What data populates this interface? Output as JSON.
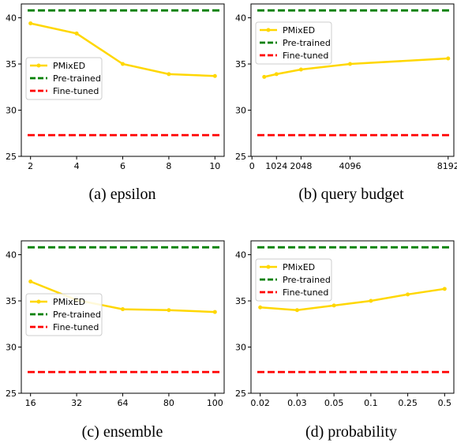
{
  "colors": {
    "pmixed": "#FFD700",
    "pretrained": "#008000",
    "finetuned": "#FF0000"
  },
  "chart_data": [
    {
      "type": "line",
      "caption": "(a) epsilon",
      "x": [
        2,
        4,
        6,
        8,
        10
      ],
      "x_tick_labels": [
        "2",
        "4",
        "6",
        "8",
        "10"
      ],
      "xlim": [
        1.6,
        10.4
      ],
      "ylim": [
        25,
        41.5
      ],
      "y_ticks": [
        25,
        30,
        35,
        40
      ],
      "series": [
        {
          "name": "PMixED",
          "values": [
            39.4,
            38.3,
            35.0,
            33.9,
            33.7
          ]
        },
        {
          "name": "Pre-trained",
          "values": [
            40.8,
            40.8,
            40.8,
            40.8,
            40.8
          ]
        },
        {
          "name": "Fine-tuned",
          "values": [
            27.3,
            27.3,
            27.3,
            27.3,
            27.3
          ]
        }
      ],
      "legend_position": "center-left"
    },
    {
      "type": "line",
      "caption": "(b) query budget",
      "x": [
        512,
        1024,
        2048,
        4096,
        8192
      ],
      "x_ticks": [
        0,
        1024,
        2048,
        4096,
        8192
      ],
      "x_tick_labels": [
        "0",
        "1024",
        "2048",
        "4096",
        "8192"
      ],
      "xlim": [
        -40,
        8430
      ],
      "ylim": [
        25,
        41.5
      ],
      "y_ticks": [
        25,
        30,
        35,
        40
      ],
      "series": [
        {
          "name": "PMixED",
          "values": [
            33.6,
            33.9,
            34.4,
            35.0,
            35.6
          ]
        },
        {
          "name": "Pre-trained",
          "values": [
            40.8,
            40.8,
            40.8,
            40.8,
            40.8
          ]
        },
        {
          "name": "Fine-tuned",
          "values": [
            27.3,
            27.3,
            27.3,
            27.3,
            27.3
          ]
        }
      ],
      "legend_position": "upper-left"
    },
    {
      "type": "line",
      "caption": "(c) ensemble",
      "x": [
        16,
        32,
        64,
        80,
        100
      ],
      "x_tick_labels": [
        "16",
        "32",
        "64",
        "80",
        "100"
      ],
      "xlim": [
        -0.2,
        4.2
      ],
      "ylim": [
        25,
        41.5
      ],
      "y_ticks": [
        25,
        30,
        35,
        40
      ],
      "series": [
        {
          "name": "PMixED",
          "values": [
            37.1,
            35.1,
            34.1,
            34.0,
            33.8
          ]
        },
        {
          "name": "Pre-trained",
          "values": [
            40.8,
            40.8,
            40.8,
            40.8,
            40.8
          ]
        },
        {
          "name": "Fine-tuned",
          "values": [
            27.3,
            27.3,
            27.3,
            27.3,
            27.3
          ]
        }
      ],
      "legend_position": "center-left"
    },
    {
      "type": "line",
      "caption": "(d) probability",
      "x": [
        0.02,
        0.03,
        0.05,
        0.1,
        0.25,
        0.5
      ],
      "x_tick_labels": [
        "0.02",
        "0.03",
        "0.05",
        "0.1",
        "0.25",
        "0.5"
      ],
      "xlim": [
        -0.25,
        5.25
      ],
      "ylim": [
        25,
        41.5
      ],
      "y_ticks": [
        25,
        30,
        35,
        40
      ],
      "series": [
        {
          "name": "PMixED",
          "values": [
            34.3,
            34.0,
            34.5,
            35.0,
            35.7,
            36.3
          ]
        },
        {
          "name": "Pre-trained",
          "values": [
            40.8,
            40.8,
            40.8,
            40.8,
            40.8,
            40.8
          ]
        },
        {
          "name": "Fine-tuned",
          "values": [
            27.3,
            27.3,
            27.3,
            27.3,
            27.3,
            27.3
          ]
        }
      ],
      "legend_position": "upper-left"
    }
  ]
}
